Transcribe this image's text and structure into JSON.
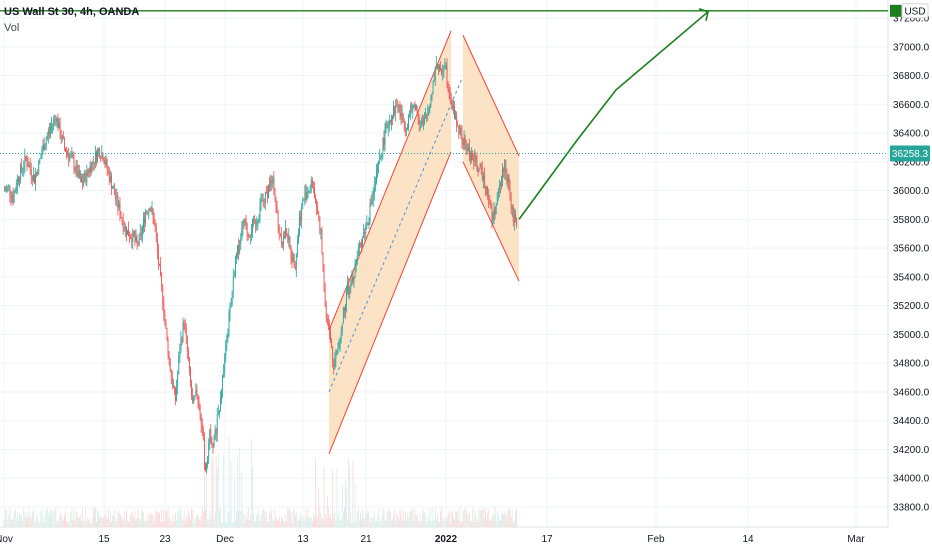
{
  "header": {
    "title": "US Wall St 30, 4h, OANDA",
    "volume_label": "Vol"
  },
  "currency_label": "USD",
  "price_badge": {
    "value": "36258.3",
    "color": "#26a69a"
  },
  "colors": {
    "up": "#26a69a",
    "down": "#ef5350",
    "channel_line": "#f44336",
    "channel_fill": "#fbd9b3",
    "forecast": "#1b7f1b",
    "median": "#4a90d9"
  },
  "chart_data": {
    "type": "candlestick",
    "symbol": "US Wall St 30",
    "interval": "4h",
    "source": "OANDA",
    "y_ticks": [
      37200,
      37000,
      36800,
      36600,
      36400,
      36200,
      36000,
      35800,
      35600,
      35400,
      35200,
      35000,
      34800,
      34600,
      34400,
      34200,
      34000,
      33800
    ],
    "y_tick_labels": [
      "37200.0",
      "37000.0",
      "36800.0",
      "36600.0",
      "36400.0",
      "36200.0",
      "36000.0",
      "35800.0",
      "35600.0",
      "35400.0",
      "35200.0",
      "35000.0",
      "34800.0",
      "34600.0",
      "34400.0",
      "34200.0",
      "34000.0",
      "33800.0"
    ],
    "x_tick_labels": [
      {
        "label": "Nov",
        "bold": false
      },
      {
        "label": "15",
        "bold": false
      },
      {
        "label": "23",
        "bold": false
      },
      {
        "label": "Dec",
        "bold": false
      },
      {
        "label": "13",
        "bold": false
      },
      {
        "label": "21",
        "bold": false
      },
      {
        "label": "2022",
        "bold": true
      },
      {
        "label": "17",
        "bold": false
      },
      {
        "label": "Feb",
        "bold": false
      },
      {
        "label": "14",
        "bold": false
      },
      {
        "label": "Mar",
        "bold": false
      }
    ],
    "last_price": 36258.3,
    "target_level": 37250,
    "price_path": [
      36000,
      36020,
      35950,
      36080,
      36150,
      36220,
      36150,
      36080,
      36180,
      36300,
      36380,
      36450,
      36520,
      36400,
      36300,
      36250,
      36200,
      36120,
      36050,
      36100,
      36160,
      36220,
      36280,
      36250,
      36150,
      36050,
      35950,
      35850,
      35750,
      35700,
      35680,
      35620,
      35700,
      35850,
      35900,
      35780,
      35500,
      35250,
      34950,
      34700,
      34550,
      34900,
      35100,
      34800,
      34500,
      34600,
      34400,
      34050,
      34300,
      34250,
      34450,
      34700,
      34950,
      35250,
      35500,
      35650,
      35780,
      35700,
      35750,
      35800,
      35900,
      35950,
      36050,
      36050,
      35750,
      35650,
      35720,
      35560,
      35500,
      35800,
      35950,
      36000,
      36050,
      35900,
      35700,
      35200,
      35000,
      34800,
      34900,
      35100,
      35300,
      35350,
      35450,
      35600,
      35700,
      35800,
      35950,
      36100,
      36250,
      36400,
      36500,
      36550,
      36600,
      36500,
      36450,
      36550,
      36600,
      36500,
      36450,
      36550,
      36700,
      36900,
      36800,
      36900,
      36700,
      36550,
      36450,
      36350,
      36300,
      36250,
      36200,
      36150,
      36100,
      36000,
      35800,
      35900,
      36050,
      36200,
      36000,
      35800
    ],
    "channel_up": {
      "upper": [
        [
          34970,
          37100
        ],
        [
          35000,
          37200
        ]
      ],
      "lower": [
        [
          34120,
          36290
        ]
      ],
      "median": [
        [
          34550,
          36780
        ]
      ]
    },
    "forecast_path": [
      35800,
      36350,
      36700,
      36450,
      37250
    ],
    "volume_bars": "relative volume histogram"
  }
}
